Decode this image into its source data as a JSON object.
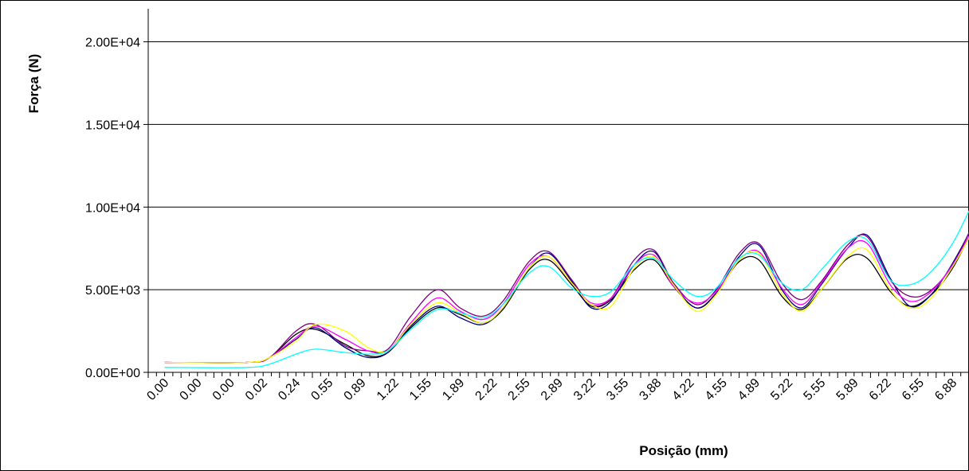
{
  "chart_data": {
    "type": "line",
    "title": "",
    "xlabel": "Posição (mm)",
    "ylabel": "Força (N)",
    "ylim": [
      0,
      22000
    ],
    "y_ticks": [
      {
        "value": 0,
        "label": "0.00E+00"
      },
      {
        "value": 5000,
        "label": "5.00E+03"
      },
      {
        "value": 10000,
        "label": "1.00E+04"
      },
      {
        "value": 15000,
        "label": "1.50E+04"
      },
      {
        "value": 20000,
        "label": "2.00E+04"
      }
    ],
    "x_tick_labels": [
      "0.00",
      "0.00",
      "0.00",
      "0.02",
      "0.24",
      "0.55",
      "0.89",
      "1.22",
      "1.55",
      "1.89",
      "2.22",
      "2.55",
      "2.89",
      "3.22",
      "3.55",
      "3.88",
      "4.22",
      "4.55",
      "4.89",
      "5.22",
      "5.55",
      "5.89",
      "6.22",
      "6.55",
      "6.88"
    ],
    "category_count": 25,
    "grid": "horizontal",
    "legend": "none",
    "series": [
      {
        "color": "#000000",
        "points": [
          [
            0,
            600
          ],
          [
            2.5,
            600
          ],
          [
            3.2,
            900
          ],
          [
            4.0,
            2300
          ],
          [
            4.6,
            2600
          ],
          [
            5.5,
            1700
          ],
          [
            6.2,
            1000
          ],
          [
            6.8,
            1200
          ],
          [
            7.5,
            2700
          ],
          [
            8.3,
            3900
          ],
          [
            9.0,
            3500
          ],
          [
            9.7,
            3000
          ],
          [
            10.3,
            3800
          ],
          [
            11.1,
            6200
          ],
          [
            11.7,
            6800
          ],
          [
            12.4,
            5300
          ],
          [
            13.0,
            4000
          ],
          [
            13.6,
            4400
          ],
          [
            14.3,
            6200
          ],
          [
            14.9,
            6800
          ],
          [
            15.5,
            5200
          ],
          [
            16.2,
            3900
          ],
          [
            16.8,
            4800
          ],
          [
            17.5,
            6700
          ],
          [
            18.1,
            6800
          ],
          [
            18.8,
            4600
          ],
          [
            19.4,
            3800
          ],
          [
            20.0,
            5000
          ],
          [
            20.8,
            6900
          ],
          [
            21.4,
            6900
          ],
          [
            22.1,
            4900
          ],
          [
            22.7,
            4000
          ],
          [
            23.3,
            4600
          ],
          [
            24.0,
            6300
          ],
          [
            24.7,
            9000
          ],
          [
            25.4,
            11500
          ]
        ]
      },
      {
        "color": "#000080",
        "points": [
          [
            0,
            600
          ],
          [
            2.5,
            600
          ],
          [
            3.2,
            900
          ],
          [
            4.0,
            2000
          ],
          [
            4.6,
            2700
          ],
          [
            5.5,
            1500
          ],
          [
            6.2,
            900
          ],
          [
            6.8,
            1200
          ],
          [
            7.5,
            2800
          ],
          [
            8.3,
            4000
          ],
          [
            9.0,
            3300
          ],
          [
            9.7,
            2900
          ],
          [
            10.3,
            3900
          ],
          [
            11.1,
            6300
          ],
          [
            11.7,
            7200
          ],
          [
            12.4,
            5500
          ],
          [
            13.0,
            3900
          ],
          [
            13.6,
            4300
          ],
          [
            14.3,
            6500
          ],
          [
            14.9,
            7300
          ],
          [
            15.5,
            5300
          ],
          [
            16.2,
            3900
          ],
          [
            16.8,
            4800
          ],
          [
            17.5,
            7000
          ],
          [
            18.1,
            7700
          ],
          [
            18.8,
            5000
          ],
          [
            19.4,
            3900
          ],
          [
            20.0,
            5300
          ],
          [
            20.8,
            7500
          ],
          [
            21.4,
            8300
          ],
          [
            22.1,
            5700
          ],
          [
            22.7,
            4000
          ],
          [
            23.3,
            4600
          ],
          [
            24.0,
            6600
          ],
          [
            24.7,
            9300
          ],
          [
            25.4,
            13000
          ]
        ]
      },
      {
        "color": "#800080",
        "points": [
          [
            0,
            600
          ],
          [
            2.5,
            600
          ],
          [
            3.2,
            900
          ],
          [
            4.0,
            2500
          ],
          [
            4.6,
            2900
          ],
          [
            5.5,
            1600
          ],
          [
            6.2,
            1300
          ],
          [
            6.8,
            1400
          ],
          [
            7.5,
            3400
          ],
          [
            8.3,
            5000
          ],
          [
            9.0,
            3900
          ],
          [
            9.7,
            3400
          ],
          [
            10.3,
            4300
          ],
          [
            11.1,
            6700
          ],
          [
            11.7,
            7300
          ],
          [
            12.4,
            5600
          ],
          [
            13.0,
            4100
          ],
          [
            13.6,
            4500
          ],
          [
            14.3,
            6800
          ],
          [
            14.9,
            7400
          ],
          [
            15.5,
            5400
          ],
          [
            16.2,
            4100
          ],
          [
            16.8,
            5000
          ],
          [
            17.5,
            7200
          ],
          [
            18.1,
            7800
          ],
          [
            18.8,
            5400
          ],
          [
            19.4,
            4400
          ],
          [
            20.0,
            5500
          ],
          [
            20.8,
            7700
          ],
          [
            21.4,
            8200
          ],
          [
            22.1,
            5600
          ],
          [
            22.7,
            4600
          ],
          [
            23.3,
            4900
          ],
          [
            24.0,
            6500
          ],
          [
            24.7,
            9300
          ],
          [
            25.4,
            12500
          ]
        ]
      },
      {
        "color": "#ff00ff",
        "points": [
          [
            0,
            600
          ],
          [
            2.5,
            600
          ],
          [
            3.2,
            900
          ],
          [
            4.0,
            2100
          ],
          [
            4.6,
            2800
          ],
          [
            5.5,
            2000
          ],
          [
            6.2,
            1300
          ],
          [
            6.8,
            1300
          ],
          [
            7.5,
            3000
          ],
          [
            8.3,
            4500
          ],
          [
            9.0,
            3700
          ],
          [
            9.7,
            3200
          ],
          [
            10.3,
            4100
          ],
          [
            11.1,
            6500
          ],
          [
            11.7,
            7000
          ],
          [
            12.4,
            5400
          ],
          [
            13.0,
            4200
          ],
          [
            13.6,
            4500
          ],
          [
            14.3,
            6500
          ],
          [
            14.9,
            7100
          ],
          [
            15.5,
            5200
          ],
          [
            16.2,
            4200
          ],
          [
            16.8,
            4900
          ],
          [
            17.5,
            6800
          ],
          [
            18.1,
            7300
          ],
          [
            18.8,
            5100
          ],
          [
            19.4,
            4100
          ],
          [
            20.0,
            5400
          ],
          [
            20.8,
            7500
          ],
          [
            21.4,
            7800
          ],
          [
            22.1,
            5300
          ],
          [
            22.7,
            4300
          ],
          [
            23.3,
            4800
          ],
          [
            24.0,
            6500
          ],
          [
            24.7,
            9000
          ],
          [
            25.4,
            12000
          ]
        ]
      },
      {
        "color": "#ffff00",
        "points": [
          [
            0,
            600
          ],
          [
            2.5,
            600
          ],
          [
            3.2,
            900
          ],
          [
            4.0,
            1900
          ],
          [
            4.6,
            2900
          ],
          [
            5.5,
            2500
          ],
          [
            6.2,
            1500
          ],
          [
            6.8,
            1300
          ],
          [
            7.5,
            2900
          ],
          [
            8.3,
            4200
          ],
          [
            9.0,
            3600
          ],
          [
            9.7,
            3000
          ],
          [
            10.3,
            3900
          ],
          [
            11.1,
            6300
          ],
          [
            11.7,
            7000
          ],
          [
            12.4,
            5400
          ],
          [
            13.0,
            4100
          ],
          [
            13.6,
            4000
          ],
          [
            14.3,
            6300
          ],
          [
            14.9,
            7000
          ],
          [
            15.5,
            5300
          ],
          [
            16.2,
            3700
          ],
          [
            16.8,
            4700
          ],
          [
            17.5,
            6800
          ],
          [
            18.1,
            7200
          ],
          [
            18.8,
            4800
          ],
          [
            19.4,
            3700
          ],
          [
            20.0,
            5000
          ],
          [
            20.8,
            7000
          ],
          [
            21.4,
            7400
          ],
          [
            22.1,
            5000
          ],
          [
            22.7,
            3900
          ],
          [
            23.3,
            4400
          ],
          [
            24.0,
            6400
          ],
          [
            24.7,
            8800
          ],
          [
            25.4,
            11000
          ]
        ]
      },
      {
        "color": "#00ffff",
        "points": [
          [
            0,
            300
          ],
          [
            2.5,
            300
          ],
          [
            3.2,
            500
          ],
          [
            4.0,
            1100
          ],
          [
            4.6,
            1400
          ],
          [
            5.5,
            1200
          ],
          [
            6.2,
            1100
          ],
          [
            6.8,
            1300
          ],
          [
            7.5,
            2600
          ],
          [
            8.3,
            3800
          ],
          [
            9.0,
            3600
          ],
          [
            9.7,
            3300
          ],
          [
            10.3,
            4100
          ],
          [
            11.1,
            6000
          ],
          [
            11.7,
            6400
          ],
          [
            12.4,
            5100
          ],
          [
            13.0,
            4600
          ],
          [
            13.6,
            4900
          ],
          [
            14.3,
            6500
          ],
          [
            14.9,
            6900
          ],
          [
            15.5,
            5600
          ],
          [
            16.2,
            4600
          ],
          [
            16.8,
            5100
          ],
          [
            17.5,
            6900
          ],
          [
            18.1,
            7100
          ],
          [
            18.8,
            5400
          ],
          [
            19.4,
            5000
          ],
          [
            20.0,
            6200
          ],
          [
            20.8,
            7900
          ],
          [
            21.4,
            8000
          ],
          [
            22.1,
            5600
          ],
          [
            22.7,
            5300
          ],
          [
            23.3,
            6000
          ],
          [
            24.0,
            7800
          ],
          [
            24.7,
            10500
          ],
          [
            25.4,
            12500
          ]
        ]
      }
    ]
  }
}
